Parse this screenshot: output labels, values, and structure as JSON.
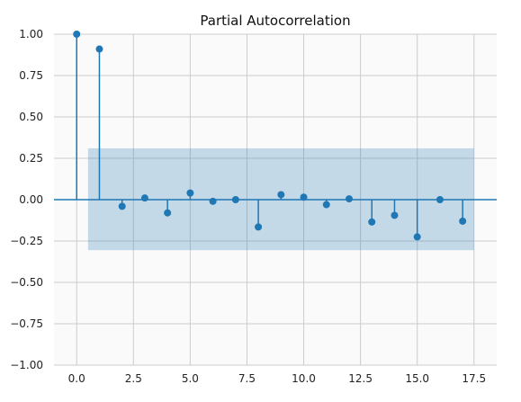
{
  "chart_data": {
    "type": "scatter",
    "subtype": "stem",
    "title": "Partial Autocorrelation",
    "xlabel": "",
    "ylabel": "",
    "xlim": [
      -1,
      18.5
    ],
    "ylim": [
      -1.0,
      1.0
    ],
    "xticks": [
      0.0,
      2.5,
      5.0,
      7.5,
      10.0,
      12.5,
      15.0,
      17.5
    ],
    "xtick_labels": [
      "0.0",
      "2.5",
      "5.0",
      "7.5",
      "10.0",
      "12.5",
      "15.0",
      "17.5"
    ],
    "yticks": [
      -1.0,
      -0.75,
      -0.5,
      -0.25,
      0.0,
      0.25,
      0.5,
      0.75,
      1.0
    ],
    "ytick_labels": [
      "−1.00",
      "−0.75",
      "−0.50",
      "−0.25",
      "0.00",
      "0.25",
      "0.50",
      "0.75",
      "1.00"
    ],
    "grid": true,
    "x": [
      0,
      1,
      2,
      3,
      4,
      5,
      6,
      7,
      8,
      9,
      10,
      11,
      12,
      13,
      14,
      15,
      16,
      17
    ],
    "values": [
      1.0,
      0.91,
      -0.04,
      0.01,
      -0.08,
      0.04,
      -0.01,
      0.0,
      -0.165,
      0.03,
      0.015,
      -0.03,
      0.005,
      -0.135,
      -0.095,
      -0.225,
      0.0,
      -0.13
    ],
    "confidence_band": {
      "x_start": 0.5,
      "x_end": 17.5,
      "lower": -0.305,
      "upper": 0.31
    },
    "colors": {
      "stem": "#1f77b4",
      "band": "#1f77b4",
      "grid": "#cccccc",
      "background": "#fafafa"
    }
  }
}
